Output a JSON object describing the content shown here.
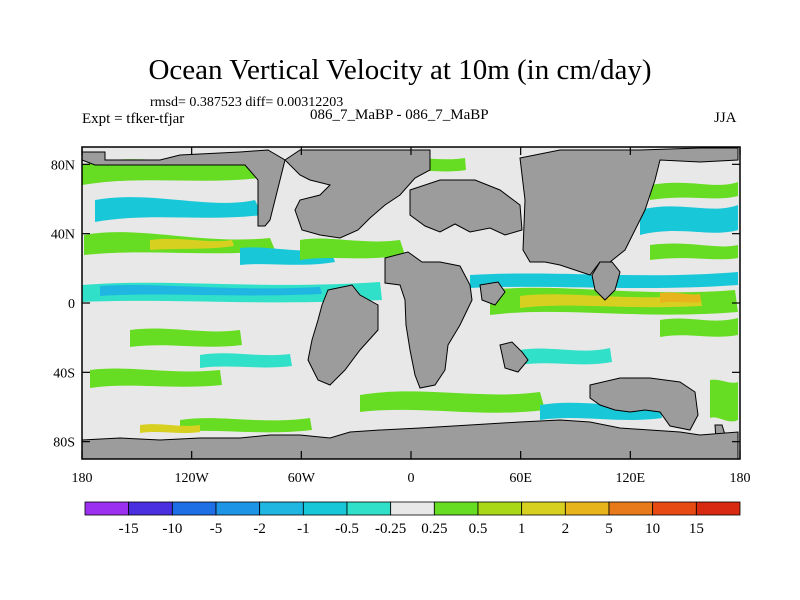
{
  "header": {
    "title": "Ocean Vertical Velocity at 10m (in cm/day)",
    "stats": "rmsd= 0.387523 diff= 0.00312203",
    "experiment": "Expt = tfker-tfjar",
    "comparison": "086_7_MaBP - 086_7_MaBP",
    "season": "JJA"
  },
  "chart_data": {
    "type": "heatmap",
    "title": "Ocean Vertical Velocity at 10m (in cm/day)",
    "x_ticks": [
      "180",
      "120W",
      "60W",
      "0",
      "60E",
      "120E",
      "180"
    ],
    "y_ticks": [
      "80N",
      "40N",
      "0",
      "40S",
      "80S"
    ],
    "xlim": [
      -180,
      180
    ],
    "ylim": [
      -90,
      90
    ],
    "colorbar": {
      "labels": [
        "-15",
        "-10",
        "-5",
        "-2",
        "-1",
        "-0.5",
        "-0.25",
        "0.25",
        "0.5",
        "1",
        "2",
        "5",
        "10",
        "15"
      ],
      "colors": [
        "#9b30f0",
        "#4a2fe0",
        "#1e6ee6",
        "#1e94e6",
        "#1fb6e2",
        "#18c8d8",
        "#30e0c8",
        "#e8e8e8",
        "#66dd22",
        "#a8d818",
        "#d8d020",
        "#e8b41c",
        "#e87a1c",
        "#e84a14",
        "#d82a10"
      ]
    },
    "colors": {
      "land": "#9c9c9c",
      "near_zero": "#e8e8e8"
    }
  }
}
